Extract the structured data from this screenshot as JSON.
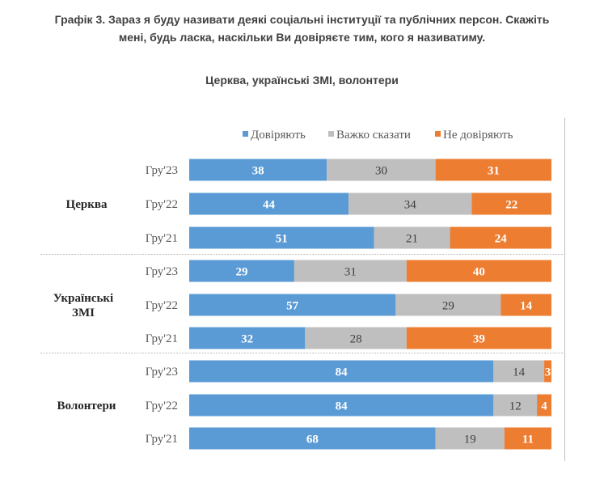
{
  "chart_data": {
    "type": "bar",
    "orientation": "horizontal",
    "stacked": true,
    "title_line1": "Графік 3. Зараз я буду називати деякі соціальні інституції та публічних персон. Скажіть",
    "title_line2": "мені, будь ласка, наскільки Ви довіряєте тим, кого я називатиму.",
    "subtitle": "Церква, українські ЗМІ, волонтери",
    "legend_position": "top",
    "xlim": [
      0,
      100
    ],
    "groups": [
      {
        "label": "Церква",
        "categories": [
          "Гру'23",
          "Гру'22",
          "Гру'21"
        ]
      },
      {
        "label_line1": "Українські",
        "label_line2": "ЗМІ",
        "categories": [
          "Гру'23",
          "Гру'22",
          "Гру'21"
        ]
      },
      {
        "label": "Волонтери",
        "categories": [
          "Гру'23",
          "Гру'22",
          "Гру'21"
        ]
      }
    ],
    "series": [
      {
        "name": "Довіряють",
        "color": "#5B9BD5",
        "label_color": "#ffffff",
        "bold": true,
        "values": [
          38,
          44,
          51,
          29,
          57,
          32,
          84,
          84,
          68
        ]
      },
      {
        "name": "Важко сказати",
        "color": "#BFBFBF",
        "label_color": "#404040",
        "bold": false,
        "values": [
          30,
          34,
          21,
          31,
          29,
          28,
          14,
          12,
          19
        ]
      },
      {
        "name": "Не  довіряють",
        "color": "#ED7D31",
        "label_color": "#ffffff",
        "bold": true,
        "values": [
          31,
          22,
          24,
          40,
          14,
          39,
          3,
          4,
          11
        ]
      }
    ]
  }
}
